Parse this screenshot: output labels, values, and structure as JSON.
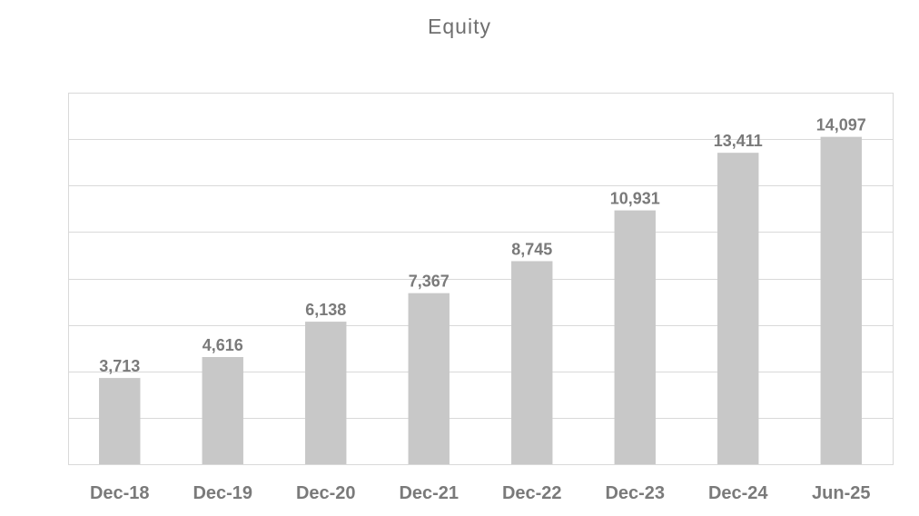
{
  "chart_data": {
    "type": "bar",
    "title": "Equity",
    "categories": [
      "Dec-18",
      "Dec-19",
      "Dec-20",
      "Dec-21",
      "Dec-22",
      "Dec-23",
      "Dec-24",
      "Jun-25"
    ],
    "values": [
      3713,
      4616,
      6138,
      7367,
      8745,
      10931,
      13411,
      14097
    ],
    "value_labels": [
      "3,713",
      "4,616",
      "6,138",
      "7,367",
      "8,745",
      "10,931",
      "13,411",
      "14,097"
    ],
    "xlabel": "",
    "ylabel": "",
    "ylim": [
      0,
      16000
    ],
    "y_gridline_step": 2000,
    "grid": true,
    "bar_color": "#c8c8c8",
    "gridline_color": "#d9d9d9",
    "text_color": "#7a7a7a"
  }
}
